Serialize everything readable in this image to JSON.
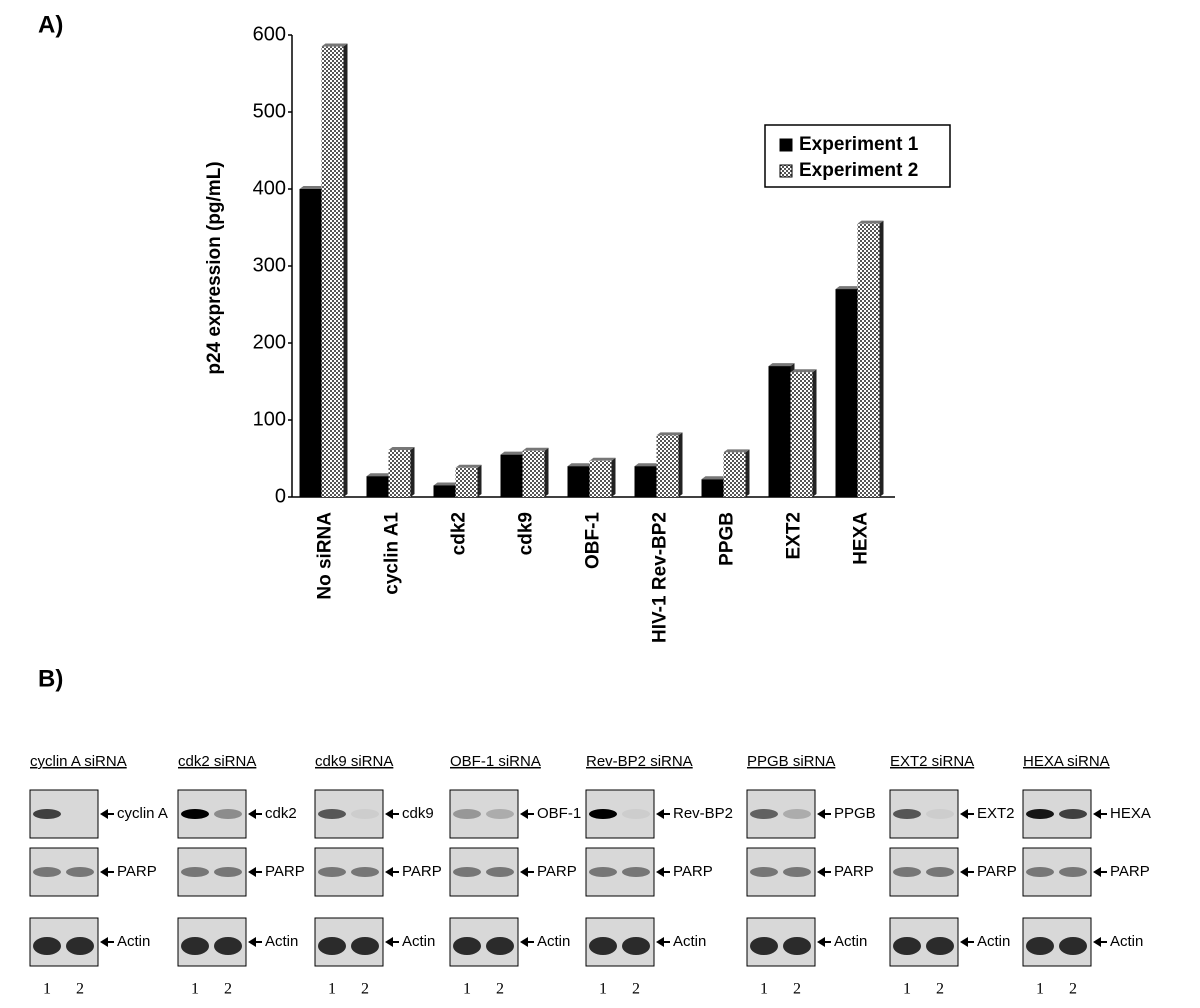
{
  "chart_data": {
    "type": "bar",
    "panel_label": "A)",
    "y_label": "p24 expression (pg/mL)",
    "categories": [
      "No siRNA",
      "cyclin A1",
      "cdk2",
      "cdk9",
      "OBF-1",
      "HIV-1 Rev-BP2",
      "PPGB",
      "EXT2",
      "HEXA"
    ],
    "series": [
      {
        "name": "Experiment 1",
        "color": "#000000",
        "values": [
          400,
          27,
          15,
          55,
          40,
          40,
          23,
          170,
          270
        ]
      },
      {
        "name": "Experiment 2",
        "color": "#555555",
        "values": [
          585,
          61,
          38,
          60,
          47,
          80,
          58,
          162,
          355
        ]
      }
    ],
    "ylim": [
      0,
      600
    ],
    "yticks": [
      0,
      100,
      200,
      300,
      400,
      500,
      600
    ],
    "grid": false,
    "legend": "upper right"
  },
  "blots": {
    "panel_label": "B)",
    "lanes": [
      "1",
      "2"
    ],
    "panels": [
      {
        "title": "cyclin A siRNA",
        "bands": [
          "cyclin A",
          "PARP",
          "Actin"
        ]
      },
      {
        "title": "cdk2 siRNA",
        "bands": [
          "cdk2",
          "PARP",
          "Actin"
        ]
      },
      {
        "title": "cdk9 siRNA",
        "bands": [
          "cdk9",
          "PARP",
          "Actin"
        ]
      },
      {
        "title": "OBF-1 siRNA",
        "bands": [
          "OBF-1",
          "PARP",
          "Actin"
        ]
      },
      {
        "title": "Rev-BP2 siRNA",
        "bands": [
          "Rev-BP2",
          "PARP",
          "Actin"
        ]
      },
      {
        "title": "PPGB siRNA",
        "bands": [
          "PPGB",
          "PARP",
          "Actin"
        ]
      },
      {
        "title": "EXT2 siRNA",
        "bands": [
          "EXT2",
          "PARP",
          "Actin"
        ]
      },
      {
        "title": "HEXA  siRNA",
        "bands": [
          "HEXA",
          "PARP",
          "Actin"
        ]
      }
    ]
  }
}
